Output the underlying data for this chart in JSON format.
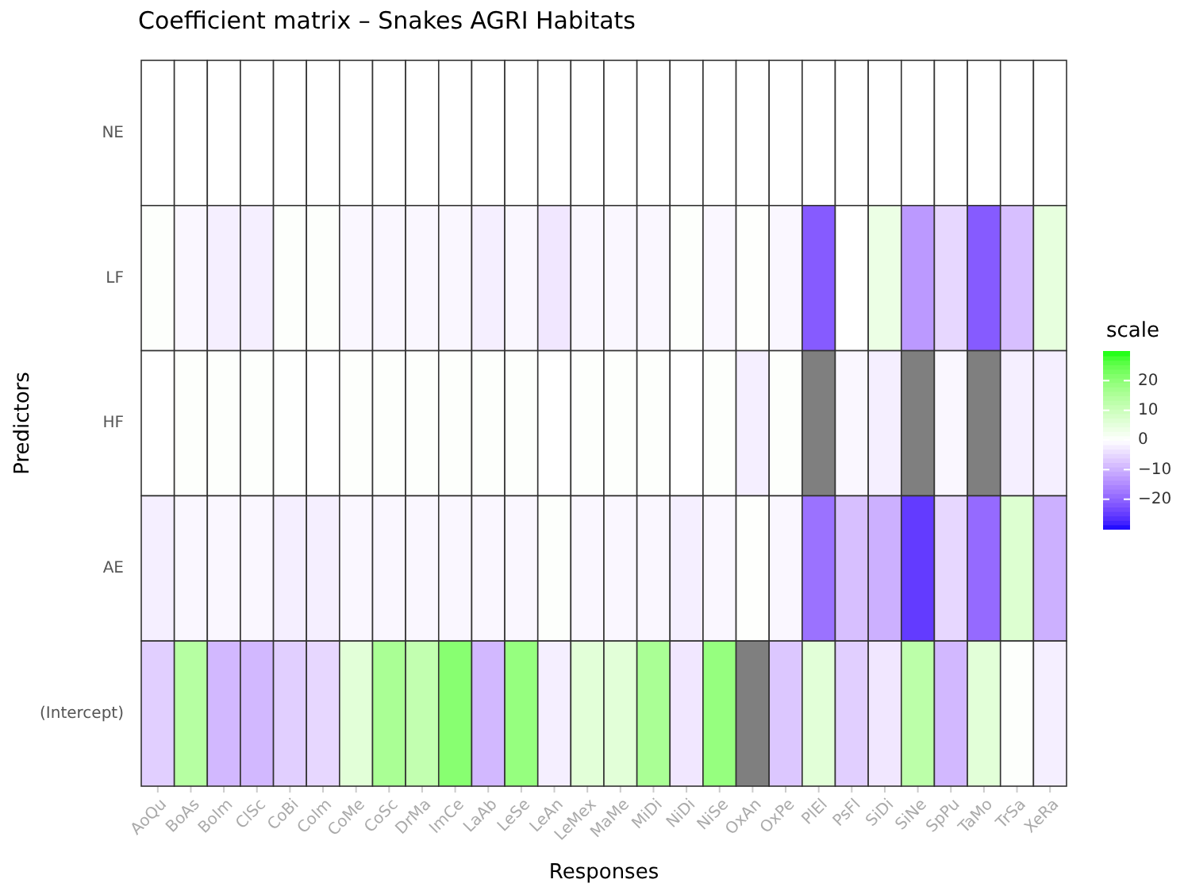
{
  "chart_data": {
    "type": "heatmap",
    "title": "Coefficient matrix – Snakes AGRI Habitats",
    "xlabel": "Responses",
    "ylabel": "Predictors",
    "clabel": "scale",
    "categories": [
      "AoQu",
      "BoAs",
      "BoIm",
      "ClSc",
      "CoBi",
      "CoIm",
      "CoMe",
      "CoSc",
      "DrMa",
      "ImCe",
      "LaAb",
      "LeSe",
      "LeAn",
      "LeMex",
      "MaMe",
      "MiDi",
      "NiDi",
      "NiSe",
      "OxAn",
      "OxPe",
      "PlEl",
      "PsFl",
      "SiDi",
      "SiNe",
      "SpPu",
      "TaMo",
      "TrSa",
      "XeRa"
    ],
    "y_categories": [
      "NE",
      "LF",
      "HF",
      "AE",
      "(Intercept)"
    ],
    "cells": [
      [
        0,
        0,
        0,
        0,
        0,
        0,
        0,
        0,
        0,
        0,
        0,
        0,
        0,
        0,
        0,
        0,
        0,
        0,
        0,
        0,
        0,
        0,
        0,
        0,
        0,
        0,
        0,
        0
      ],
      [
        0.5,
        -1,
        -2,
        -2,
        0.5,
        0.5,
        -1,
        -1,
        -1,
        -1,
        -2,
        -1,
        -3,
        -1,
        -1,
        -1,
        0.5,
        -1,
        0.3,
        -1,
        -21,
        0,
        4,
        -13,
        -5,
        -21,
        -8,
        5
      ],
      [
        0,
        0.5,
        0.5,
        0.5,
        0.2,
        0,
        0.5,
        0.5,
        0.5,
        0.5,
        0.5,
        0.5,
        0,
        0.5,
        0.5,
        0.5,
        0,
        0.5,
        -2,
        0.5,
        null,
        -1,
        -2,
        null,
        -1,
        null,
        -2,
        -2
      ],
      [
        -2,
        -1,
        -1,
        -1,
        -2,
        -2,
        -1,
        -1,
        -1,
        -1,
        -1,
        -1,
        0.5,
        -1,
        -1,
        -1,
        -2,
        -1,
        0.3,
        -1,
        -18,
        -8,
        -10,
        -25,
        -5,
        -19,
        7,
        -10
      ],
      [
        -6,
        14,
        -9,
        -9,
        -6,
        -5,
        6,
        16,
        12,
        21,
        -9,
        19,
        -2,
        6,
        6,
        16,
        -3,
        19,
        null,
        -7,
        6,
        -6,
        -3,
        13,
        -9,
        6,
        0.5,
        -2
      ]
    ],
    "clim": [
      -30,
      30
    ],
    "cticks": [
      20,
      10,
      0,
      {
        "value": -10,
        "label": "−10"
      },
      {
        "value": -20,
        "label": "−20"
      }
    ]
  }
}
